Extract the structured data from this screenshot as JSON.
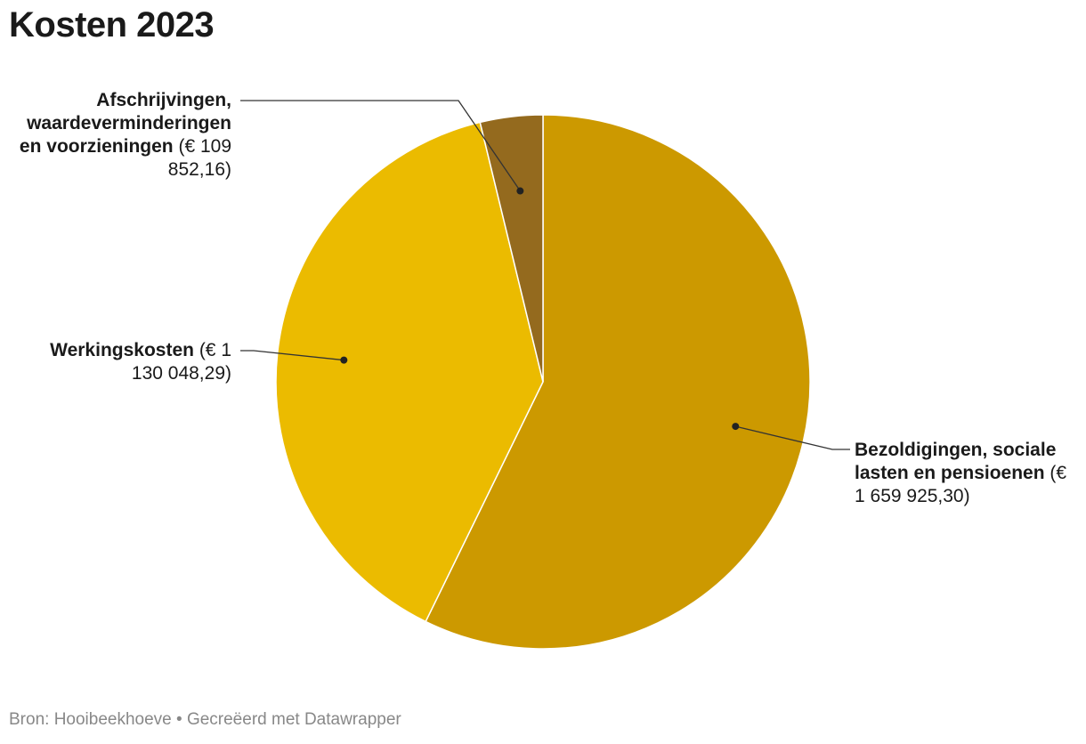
{
  "chart_data": {
    "type": "pie",
    "title": "Kosten 2023",
    "slices": [
      {
        "name": "Bezoldigingen, sociale lasten en pensioenen",
        "value": 1659925.3,
        "value_label": "€ 1 659 925,30",
        "color": "#cc9900"
      },
      {
        "name": "Werkingskosten",
        "value": 1130048.29,
        "value_label": "€ 1 130 048,29",
        "color": "#ebbb00"
      },
      {
        "name": "Afschrijvingen, waardeverminderingen en voorzieningen",
        "value": 109852.16,
        "value_label": "€ 109 852,16",
        "color": "#946a1e"
      }
    ],
    "start_angle": "top, clockwise",
    "legend": "none (direct labels)"
  },
  "labels": {
    "slice0_name": "Bezoldigingen, sociale lasten en pensioenen",
    "slice0_value": "(€ 1 659 925,30)",
    "slice1_name": "Werkingskosten",
    "slice1_value": "(€ 1 130 048,29)",
    "slice2_name": "Afschrijvingen, waardeverminderingen en voorzieningen",
    "slice2_value": "(€ 109 852,16)"
  },
  "footer": {
    "text": "Bron: Hooibeekhoeve  • Gecreëerd met Datawrapper"
  }
}
